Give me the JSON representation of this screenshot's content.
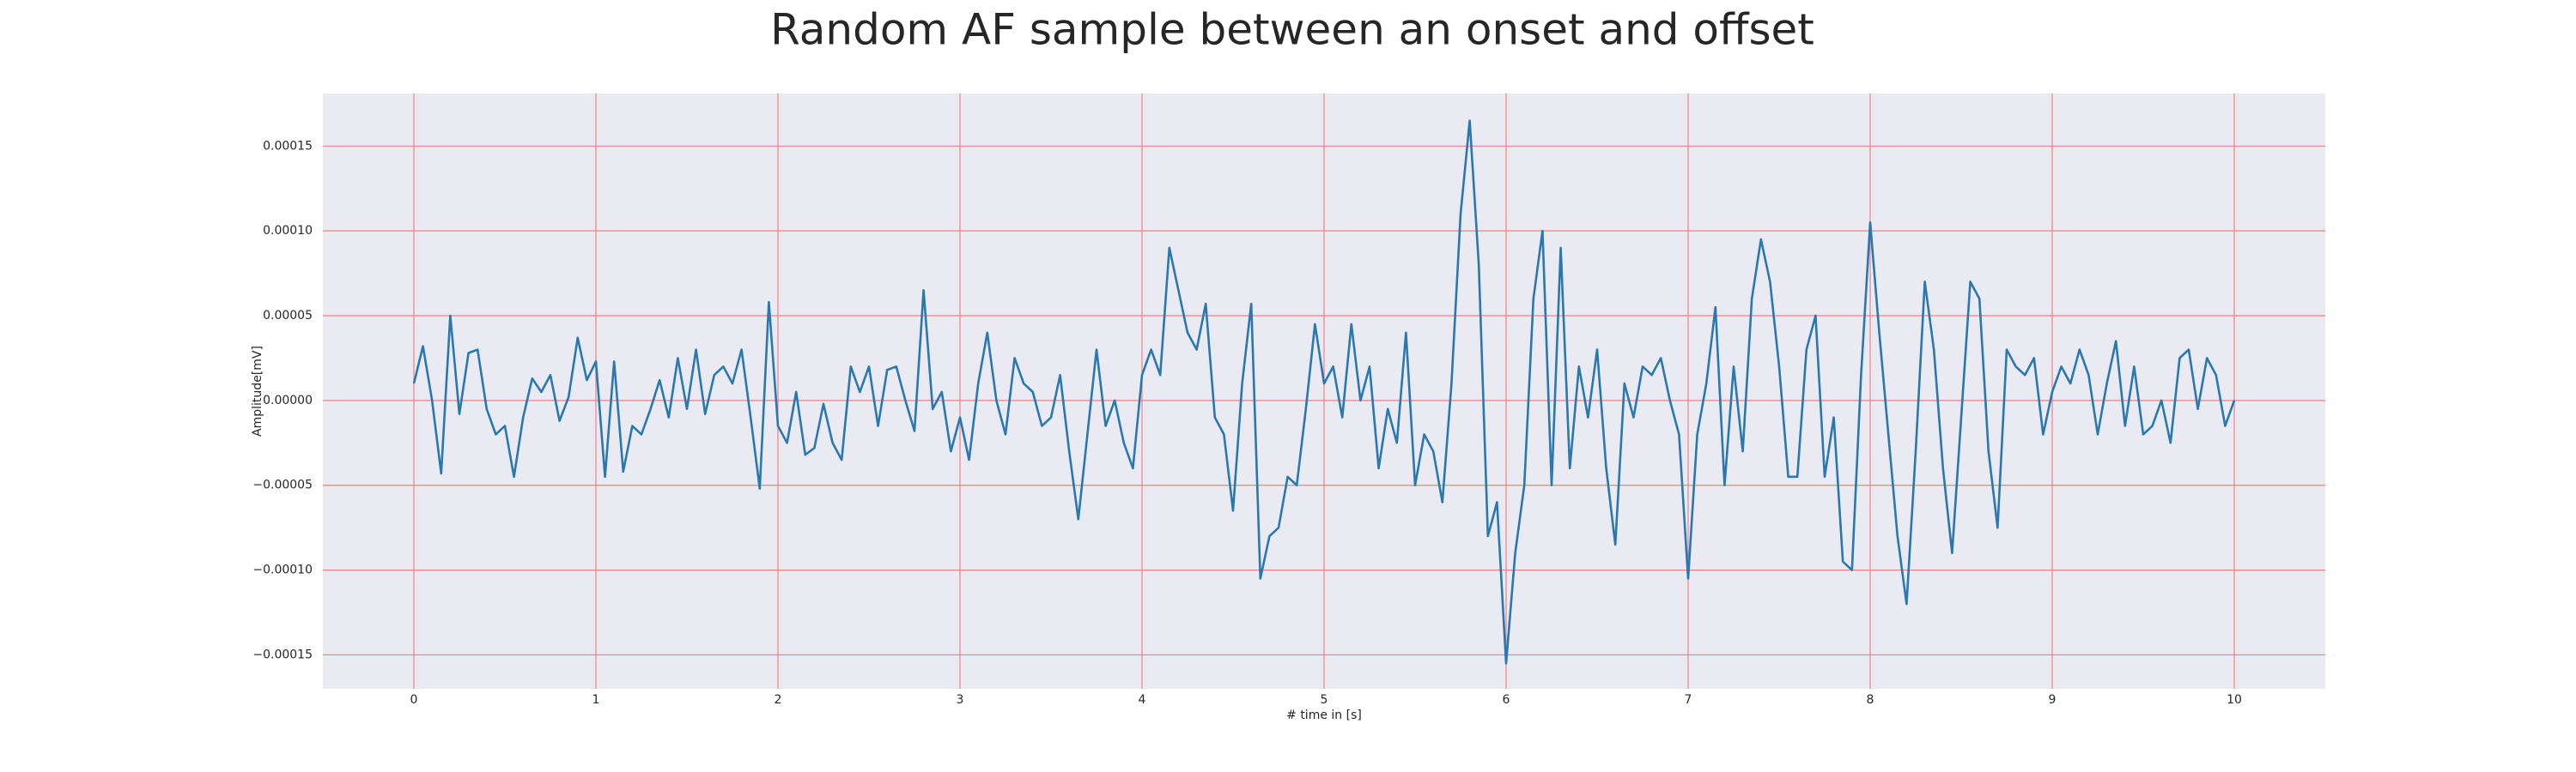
{
  "chart_data": {
    "type": "line",
    "title": "Random AF sample between an onset and offset",
    "xlabel": "# time in [s]",
    "ylabel": "Amplitude[mV]",
    "x": [
      0,
      0.05,
      0.1,
      0.15,
      0.2,
      0.25,
      0.3,
      0.35,
      0.4,
      0.45,
      0.5,
      0.55,
      0.6,
      0.65,
      0.7,
      0.75,
      0.8,
      0.85,
      0.9,
      0.95,
      1,
      1.05,
      1.1,
      1.15,
      1.2,
      1.25,
      1.3,
      1.35,
      1.4,
      1.45,
      1.5,
      1.55,
      1.6,
      1.65,
      1.7,
      1.75,
      1.8,
      1.85,
      1.9,
      1.95,
      2,
      2.05,
      2.1,
      2.15,
      2.2,
      2.25,
      2.3,
      2.35,
      2.4,
      2.45,
      2.5,
      2.55,
      2.6,
      2.65,
      2.7,
      2.75,
      2.8,
      2.85,
      2.9,
      2.95,
      3,
      3.05,
      3.1,
      3.15,
      3.2,
      3.25,
      3.3,
      3.35,
      3.4,
      3.45,
      3.5,
      3.55,
      3.6,
      3.65,
      3.7,
      3.75,
      3.8,
      3.85,
      3.9,
      3.95,
      4,
      4.05,
      4.1,
      4.15,
      4.2,
      4.25,
      4.3,
      4.35,
      4.4,
      4.45,
      4.5,
      4.55,
      4.6,
      4.65,
      4.7,
      4.75,
      4.8,
      4.85,
      4.9,
      4.95,
      5,
      5.05,
      5.1,
      5.15,
      5.2,
      5.25,
      5.3,
      5.35,
      5.4,
      5.45,
      5.5,
      5.55,
      5.6,
      5.65,
      5.7,
      5.75,
      5.8,
      5.85,
      5.9,
      5.95,
      6,
      6.05,
      6.1,
      6.15,
      6.2,
      6.25,
      6.3,
      6.35,
      6.4,
      6.45,
      6.5,
      6.55,
      6.6,
      6.65,
      6.7,
      6.75,
      6.8,
      6.85,
      6.9,
      6.95,
      7,
      7.05,
      7.1,
      7.15,
      7.2,
      7.25,
      7.3,
      7.35,
      7.4,
      7.45,
      7.5,
      7.55,
      7.6,
      7.65,
      7.7,
      7.75,
      7.8,
      7.85,
      7.9,
      7.95,
      8,
      8.05,
      8.1,
      8.15,
      8.2,
      8.25,
      8.3,
      8.35,
      8.4,
      8.45,
      8.5,
      8.55,
      8.6,
      8.65,
      8.7,
      8.75,
      8.8,
      8.85,
      8.9,
      8.95,
      9,
      9.05,
      9.1,
      9.15,
      9.2,
      9.25,
      9.3,
      9.35,
      9.4,
      9.45,
      9.5,
      9.55,
      9.6,
      9.65,
      9.7,
      9.75,
      9.8,
      9.85,
      9.9,
      9.95,
      10
    ],
    "series": [
      {
        "color": "#2a78b0",
        "values": [
          1e-05,
          3.2e-05,
          0,
          -4.3e-05,
          5e-05,
          -8e-06,
          2.8e-05,
          3e-05,
          -5e-06,
          -2e-05,
          -1.5e-05,
          -4.5e-05,
          -1e-05,
          1.3e-05,
          5e-06,
          1.5e-05,
          -1.2e-05,
          2e-06,
          3.7e-05,
          1.2e-05,
          2.3e-05,
          -4.5e-05,
          2.3e-05,
          -4.2e-05,
          -1.5e-05,
          -2e-05,
          -5e-06,
          1.2e-05,
          -1e-05,
          2.5e-05,
          -5e-06,
          3e-05,
          -8e-06,
          1.5e-05,
          2e-05,
          1e-05,
          3e-05,
          -1e-05,
          -5.2e-05,
          5.8e-05,
          -1.5e-05,
          -2.5e-05,
          5e-06,
          -3.2e-05,
          -2.8e-05,
          -2e-06,
          -2.5e-05,
          -3.5e-05,
          2e-05,
          5e-06,
          2e-05,
          -1.5e-05,
          1.8e-05,
          2e-05,
          0,
          -1.8e-05,
          6.5e-05,
          -5e-06,
          5e-06,
          -3e-05,
          -1e-05,
          -3.5e-05,
          1e-05,
          4e-05,
          0,
          -2e-05,
          2.5e-05,
          1e-05,
          5e-06,
          -1.5e-05,
          -1e-05,
          1.5e-05,
          -3e-05,
          -7e-05,
          -2e-05,
          3e-05,
          -1.5e-05,
          0,
          -2.5e-05,
          -4e-05,
          1.5e-05,
          3e-05,
          1.5e-05,
          9e-05,
          6.5e-05,
          4e-05,
          3e-05,
          5.7e-05,
          -1e-05,
          -2e-05,
          -6.5e-05,
          1e-05,
          5.7e-05,
          -0.000105,
          -8e-05,
          -7.5e-05,
          -4.5e-05,
          -5e-05,
          -5e-06,
          4.5e-05,
          1e-05,
          2e-05,
          -1e-05,
          4.5e-05,
          0,
          2e-05,
          -4e-05,
          -5e-06,
          -2.5e-05,
          4e-05,
          -5e-05,
          -2e-05,
          -3e-05,
          -6e-05,
          1e-05,
          0.00011,
          0.000165,
          8e-05,
          -8e-05,
          -6e-05,
          -0.000155,
          -9e-05,
          -5e-05,
          6e-05,
          0.0001,
          -5e-05,
          9e-05,
          -4e-05,
          2e-05,
          -1e-05,
          3e-05,
          -4e-05,
          -8.5e-05,
          1e-05,
          -1e-05,
          2e-05,
          1.5e-05,
          2.5e-05,
          0,
          -2e-05,
          -0.000105,
          -2e-05,
          1e-05,
          5.5e-05,
          -5e-05,
          2e-05,
          -3e-05,
          6e-05,
          9.5e-05,
          7e-05,
          2e-05,
          -4.5e-05,
          -4.5e-05,
          3e-05,
          5e-05,
          -4.5e-05,
          -1e-05,
          -9.5e-05,
          -0.0001,
          1.5e-05,
          0.000105,
          4e-05,
          -2e-05,
          -8e-05,
          -0.00012,
          -3e-05,
          7e-05,
          3e-05,
          -4e-05,
          -9e-05,
          -1e-05,
          7e-05,
          6e-05,
          -3e-05,
          -7.5e-05,
          3e-05,
          2e-05,
          1.5e-05,
          2.5e-05,
          -2e-05,
          5e-06,
          2e-05,
          1e-05,
          3e-05,
          1.5e-05,
          -2e-05,
          1e-05,
          3.5e-05,
          -1.5e-05,
          2e-05,
          -2e-05,
          -1.5e-05,
          0,
          -2.5e-05,
          2.5e-05,
          3e-05,
          -5e-06,
          2.5e-05,
          1.5e-05,
          -1.5e-05,
          0
        ]
      }
    ],
    "xlim": [
      -0.5,
      10.5
    ],
    "ylim": [
      -0.00017,
      0.000181
    ],
    "xticks": [
      0,
      1,
      2,
      3,
      4,
      5,
      6,
      7,
      8,
      9,
      10
    ],
    "yticks": [
      {
        "value": -0.00015,
        "label": "−0.00015"
      },
      {
        "value": -0.0001,
        "label": "−0.00010"
      },
      {
        "value": -5e-05,
        "label": "−0.00005"
      },
      {
        "value": 0,
        "label": "0.00000"
      },
      {
        "value": 5e-05,
        "label": "0.00005"
      },
      {
        "value": 0.0001,
        "label": "0.00010"
      },
      {
        "value": 0.00015,
        "label": "0.00015"
      }
    ],
    "grid": true,
    "grid_color": "#f08080",
    "background": "#eaeaf2"
  }
}
